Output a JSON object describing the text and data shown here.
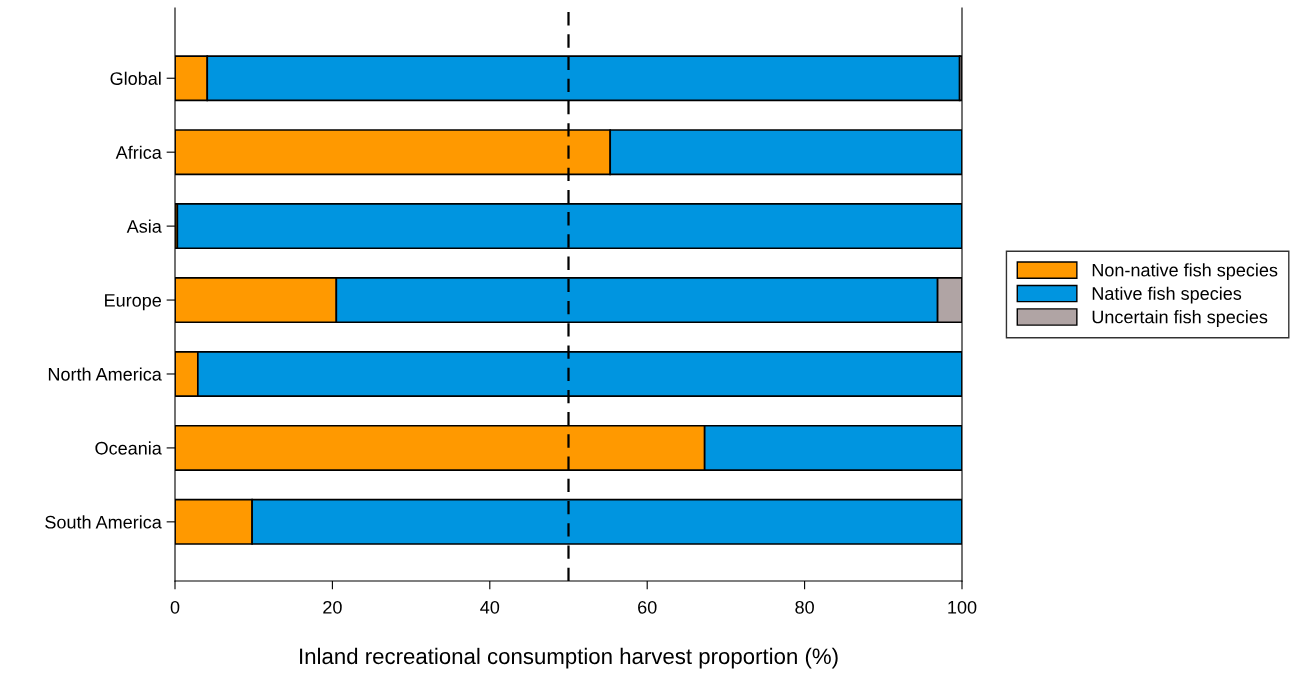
{
  "chart_data": {
    "type": "bar",
    "orientation": "horizontal",
    "stacked": true,
    "categories": [
      "Global",
      "Africa",
      "Asia",
      "Europe",
      "North America",
      "Oceania",
      "South America"
    ],
    "series": [
      {
        "name": "Non-native fish species",
        "color": "#ff9900",
        "values": [
          4.1,
          55.3,
          0.3,
          20.5,
          2.9,
          67.3,
          9.8
        ]
      },
      {
        "name": "Native fish species",
        "color": "#0095e0",
        "values": [
          95.6,
          44.7,
          99.7,
          76.4,
          97.1,
          32.7,
          90.2
        ]
      },
      {
        "name": "Uncertain fish species",
        "color": "#b0a4a4",
        "values": [
          0.3,
          null,
          null,
          3.1,
          null,
          null,
          null
        ]
      }
    ],
    "xlabel": "Inland recreational consumption harvest proportion (%)",
    "xlim": [
      0,
      100
    ],
    "xticks": [
      0,
      20,
      40,
      60,
      80,
      100
    ],
    "ref_lines": [
      {
        "axis": "x",
        "value": 50,
        "color": "#000000",
        "line_style": "dashed"
      }
    ],
    "legend": "right",
    "grid": false
  }
}
